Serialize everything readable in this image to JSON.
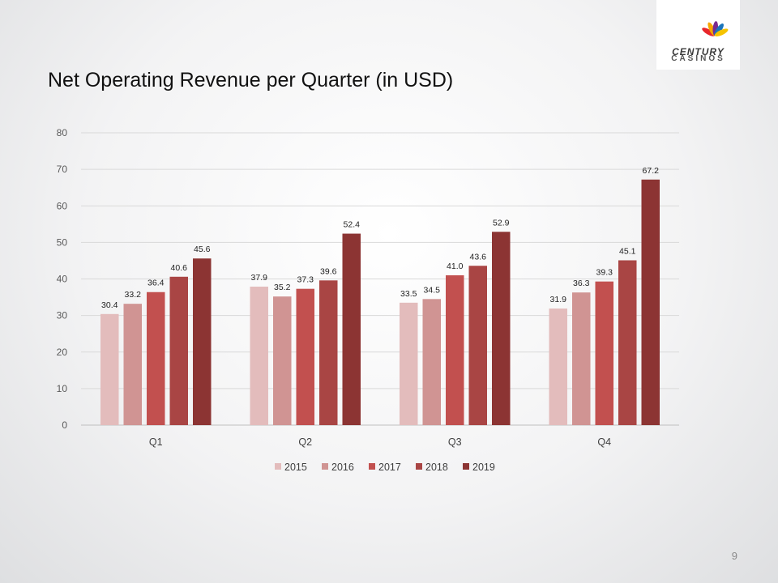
{
  "slide": {
    "title": "Net Operating Revenue per Quarter (in USD)",
    "page_number": "9"
  },
  "logo": {
    "line1": "CENTURY",
    "line2": "CASINOS",
    "petal_colors": [
      "#e8262b",
      "#f7a600",
      "#7a2a8f",
      "#1b75bb",
      "#f5c300"
    ]
  },
  "chart_data": {
    "type": "bar",
    "title": "",
    "xlabel": "",
    "ylabel": "",
    "ylim": [
      0,
      80
    ],
    "yticks": [
      0,
      10,
      20,
      30,
      40,
      50,
      60,
      70,
      80
    ],
    "grid": true,
    "legend_position": "bottom",
    "data_labels": true,
    "categories": [
      "Q1",
      "Q2",
      "Q3",
      "Q4"
    ],
    "series": [
      {
        "name": "2015",
        "color": "#e3bcbc",
        "values": [
          30.4,
          37.9,
          33.5,
          31.9
        ]
      },
      {
        "name": "2016",
        "color": "#d09493",
        "values": [
          33.2,
          35.2,
          34.5,
          36.3
        ]
      },
      {
        "name": "2017",
        "color": "#c2504f",
        "values": [
          36.4,
          37.3,
          41.0,
          39.3
        ]
      },
      {
        "name": "2018",
        "color": "#a94544",
        "values": [
          40.6,
          39.6,
          43.6,
          45.1
        ]
      },
      {
        "name": "2019",
        "color": "#8c3433",
        "values": [
          45.6,
          52.4,
          52.9,
          67.2
        ]
      }
    ]
  }
}
